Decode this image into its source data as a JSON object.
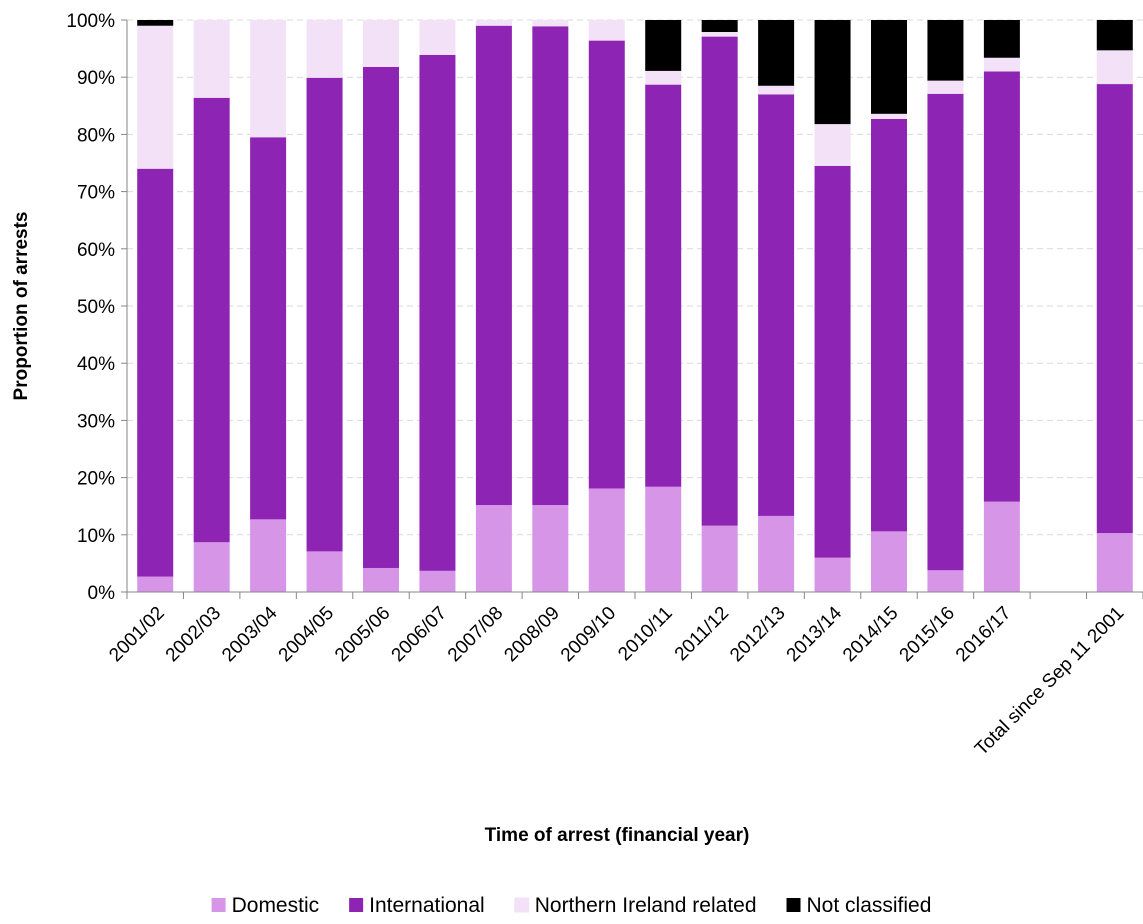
{
  "chart_data": {
    "type": "bar",
    "stacked": true,
    "categories": [
      "2001/02",
      "2002/03",
      "2003/04",
      "2004/05",
      "2005/06",
      "2006/07",
      "2007/08",
      "2008/09",
      "2009/10",
      "2010/11",
      "2011/12",
      "2012/13",
      "2013/14",
      "2014/15",
      "2015/16",
      "2016/17",
      "",
      "Total since Sep 11 2001"
    ],
    "series": [
      {
        "name": "Domestic",
        "color": "#d695e6",
        "values": [
          2.7,
          8.7,
          12.7,
          7.1,
          4.2,
          3.7,
          15.2,
          15.2,
          18.1,
          18.4,
          11.6,
          13.3,
          6.0,
          10.6,
          3.8,
          15.8,
          null,
          10.3
        ]
      },
      {
        "name": "International",
        "color": "#8e24b4",
        "values": [
          71.3,
          77.7,
          66.8,
          82.8,
          87.6,
          90.2,
          83.8,
          83.7,
          78.3,
          70.3,
          85.5,
          73.7,
          68.5,
          72.1,
          83.3,
          75.2,
          null,
          78.5
        ]
      },
      {
        "name": "Northern Ireland related",
        "color": "#f2e1f7",
        "values": [
          25.0,
          13.6,
          20.5,
          10.1,
          8.2,
          6.1,
          1.0,
          1.1,
          3.6,
          2.4,
          0.8,
          1.5,
          7.3,
          0.9,
          2.3,
          2.4,
          null,
          5.9
        ]
      },
      {
        "name": "Not classified",
        "color": "#000000",
        "values": [
          1.0,
          0,
          0,
          0,
          0,
          0,
          0,
          0,
          0,
          8.9,
          2.1,
          11.5,
          18.2,
          16.4,
          10.6,
          6.6,
          null,
          5.3
        ]
      }
    ],
    "xlabel": "Time of arrest (financial year)",
    "ylabel": "Proportion of arrests",
    "ylim": [
      0,
      100
    ],
    "yticks": [
      "0%",
      "10%",
      "20%",
      "30%",
      "40%",
      "50%",
      "60%",
      "70%",
      "80%",
      "90%",
      "100%"
    ],
    "grid": true,
    "legend_position": "bottom"
  }
}
